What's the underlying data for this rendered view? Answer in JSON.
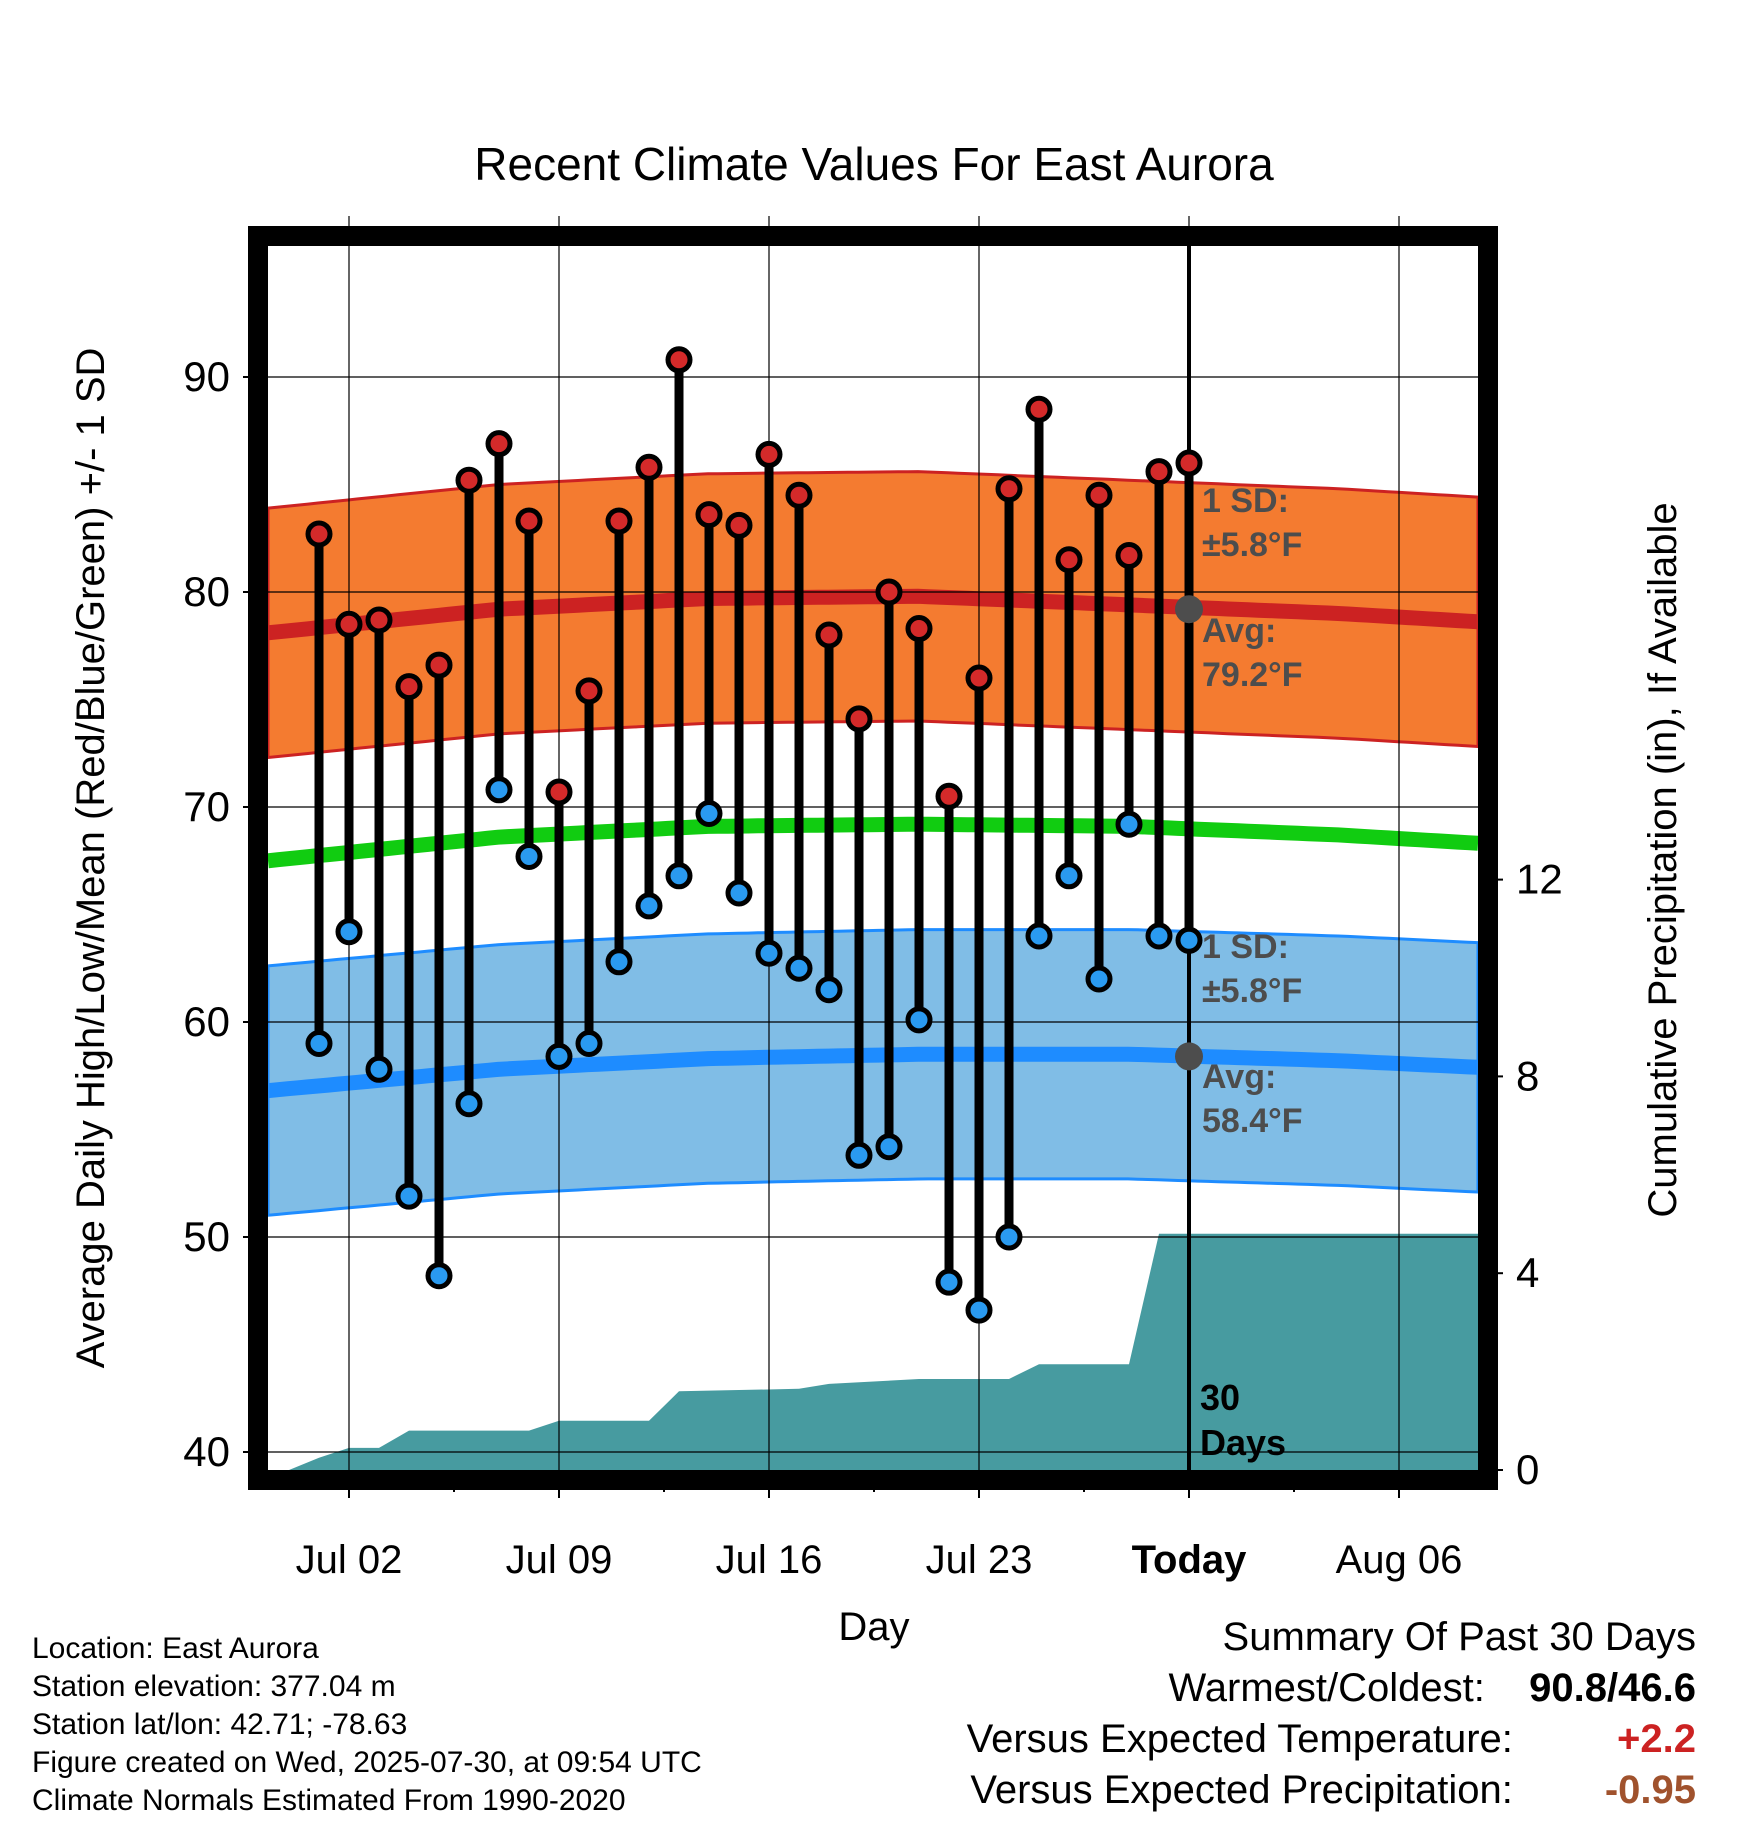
{
  "chart_data": {
    "type": "line",
    "title": "Recent Climate Values For East Aurora",
    "xlabel": "Day",
    "ylabel": "Average Daily High/Low/Mean (Red/Blue/Green) +/- 1 SD",
    "y2label": "Cumulative Precipitation (in), If Available",
    "xticks": [
      "Jul 02",
      "Jul 09",
      "Jul 16",
      "Jul 23",
      "Today",
      "Aug 06"
    ],
    "ylim": [
      39,
      96
    ],
    "yticks": [
      40,
      50,
      60,
      70,
      80,
      90
    ],
    "y2lim": [
      0,
      18
    ],
    "y2ticks": [
      0,
      4,
      8,
      12
    ],
    "grid": true,
    "today_label": "30\nDays",
    "observed": [
      {
        "date": "2025-07-01",
        "high": 82.7,
        "low": 59.0
      },
      {
        "date": "2025-07-02",
        "high": 78.5,
        "low": 64.2
      },
      {
        "date": "2025-07-03",
        "high": 78.7,
        "low": 57.8
      },
      {
        "date": "2025-07-04",
        "high": 75.6,
        "low": 51.9
      },
      {
        "date": "2025-07-05",
        "high": 76.6,
        "low": 48.2
      },
      {
        "date": "2025-07-06",
        "high": 85.2,
        "low": 56.2
      },
      {
        "date": "2025-07-07",
        "high": 86.9,
        "low": 70.8
      },
      {
        "date": "2025-07-08",
        "high": 83.3,
        "low": 67.7
      },
      {
        "date": "2025-07-09",
        "high": 70.7,
        "low": 58.4
      },
      {
        "date": "2025-07-10",
        "high": 75.4,
        "low": 59.0
      },
      {
        "date": "2025-07-11",
        "high": 83.3,
        "low": 62.8
      },
      {
        "date": "2025-07-12",
        "high": 85.8,
        "low": 65.4
      },
      {
        "date": "2025-07-13",
        "high": 90.8,
        "low": 66.8
      },
      {
        "date": "2025-07-14",
        "high": 83.6,
        "low": 69.7
      },
      {
        "date": "2025-07-15",
        "high": 83.1,
        "low": 66.0
      },
      {
        "date": "2025-07-16",
        "high": 86.4,
        "low": 63.2
      },
      {
        "date": "2025-07-17",
        "high": 84.5,
        "low": 62.5
      },
      {
        "date": "2025-07-18",
        "high": 78.0,
        "low": 61.5
      },
      {
        "date": "2025-07-19",
        "high": 74.1,
        "low": 53.8
      },
      {
        "date": "2025-07-20",
        "high": 80.0,
        "low": 54.2
      },
      {
        "date": "2025-07-21",
        "high": 78.3,
        "low": 60.1
      },
      {
        "date": "2025-07-22",
        "high": 70.5,
        "low": 47.9
      },
      {
        "date": "2025-07-23",
        "high": 76.0,
        "low": 46.6
      },
      {
        "date": "2025-07-24",
        "high": 84.8,
        "low": 50.0
      },
      {
        "date": "2025-07-25",
        "high": 88.5,
        "low": 64.0
      },
      {
        "date": "2025-07-26",
        "high": 81.5,
        "low": 66.8
      },
      {
        "date": "2025-07-27",
        "high": 84.5,
        "low": 62.0
      },
      {
        "date": "2025-07-28",
        "high": 81.7,
        "low": 69.2
      },
      {
        "date": "2025-07-29",
        "high": 85.6,
        "low": 64.0
      },
      {
        "date": "2025-07-30",
        "high": 86.0,
        "low": 63.8
      }
    ],
    "normals": {
      "dates": [
        "2025-06-30",
        "2025-07-07",
        "2025-07-14",
        "2025-07-21",
        "2025-07-28",
        "2025-08-04",
        "2025-08-10"
      ],
      "high": [
        78.2,
        79.2,
        79.7,
        79.8,
        79.4,
        79.0,
        78.5
      ],
      "low": [
        56.9,
        57.8,
        58.3,
        58.5,
        58.5,
        58.2,
        57.8
      ],
      "mean": [
        67.6,
        68.6,
        69.1,
        69.2,
        69.1,
        68.7,
        68.2
      ],
      "high_sd": 5.8,
      "low_sd": 5.8
    },
    "precip_cumulative": {
      "dates": [
        "2025-06-30",
        "2025-07-01",
        "2025-07-02",
        "2025-07-03",
        "2025-07-04",
        "2025-07-08",
        "2025-07-09",
        "2025-07-12",
        "2025-07-13",
        "2025-07-17",
        "2025-07-18",
        "2025-07-21",
        "2025-07-24",
        "2025-07-25",
        "2025-07-28",
        "2025-07-29",
        "2025-08-10"
      ],
      "values": [
        0.0,
        0.25,
        0.45,
        0.45,
        0.8,
        0.8,
        1.0,
        1.0,
        1.6,
        1.65,
        1.75,
        1.85,
        1.85,
        2.15,
        2.15,
        4.8,
        4.8
      ]
    },
    "annotations": {
      "high_sd": "1 SD:",
      "high_sd_value": "±5.8°F",
      "high_avg": "Avg:",
      "high_avg_value": "79.2°F",
      "low_sd": "1 SD:",
      "low_sd_value": "±5.8°F",
      "low_avg": "Avg:",
      "low_avg_value": "58.4°F"
    },
    "colors": {
      "high_band": "#f47b30",
      "high_line": "#cc2222",
      "low_band": "#80bde6",
      "low_line": "#1e8cff",
      "mean_line": "#11cc11",
      "precip": "#479ba0",
      "high_marker": "#d42a2a",
      "low_marker": "#2a9af0",
      "avg_marker": "#4d4d4d",
      "annotation_text": "#4d4d4d"
    }
  },
  "info": {
    "location": "Location: East Aurora",
    "elevation": "Station elevation: 377.04 m",
    "latlon": "Station lat/lon: 42.71; -78.63",
    "created": "Figure created on Wed, 2025-07-30, at 09:54 UTC",
    "normals": "Climate Normals Estimated From 1990-2020"
  },
  "summary": {
    "heading": "Summary Of Past 30 Days",
    "warm_cold_label": "Warmest/Coldest:",
    "warm_cold_value": "90.8/46.6",
    "temp_label": "Versus Expected Temperature:",
    "temp_value": "+2.2",
    "temp_color": "#cc2222",
    "precip_label": "Versus Expected Precipitation:",
    "precip_value": "-0.95",
    "precip_color": "#a0522d"
  }
}
